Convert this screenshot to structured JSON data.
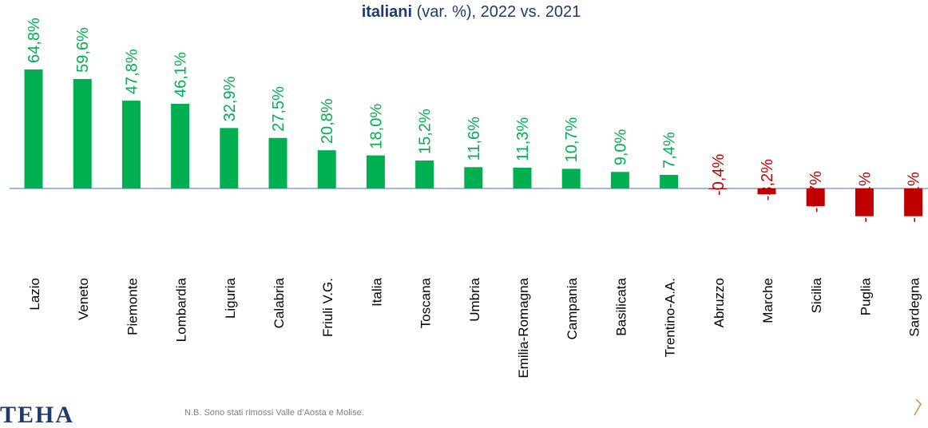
{
  "title": {
    "bold": "italiani",
    "rest": " (var. %), 2022 vs. 2021"
  },
  "footer": {
    "logo": "TEHA",
    "note": "N.B. Sono stati rimossi Valle d’Aosta e Molise."
  },
  "colors": {
    "positive": "#00B050",
    "negative": "#C00000",
    "axis": "#4472C4",
    "title": "#1F3A6E"
  },
  "chart_data": {
    "type": "bar",
    "categories": [
      "Lazio",
      "Veneto",
      "Piemonte",
      "Lombardia",
      "Liguria",
      "Calabria",
      "Friuli V.G.",
      "Italia",
      "Toscana",
      "Umbria",
      "Emilia-Romagna",
      "Campania",
      "Basilicata",
      "Trentino-A.A.",
      "Abruzzo",
      "Marche",
      "Sicilia",
      "Puglia",
      "Sardegna"
    ],
    "values": [
      64.8,
      59.6,
      47.8,
      46.1,
      32.9,
      27.5,
      20.8,
      18.0,
      15.2,
      11.6,
      11.3,
      10.7,
      9.0,
      7.4,
      -0.4,
      -3.2,
      -9.7,
      -15.1,
      -15.1
    ],
    "data_labels": [
      "64,8%",
      "59,6%",
      "47,8%",
      "46,1%",
      "32,9%",
      "27,5%",
      "20,8%",
      "18,0%",
      "15,2%",
      "11,6%",
      "11,3%",
      "10,7%",
      "9,0%",
      "7,4%",
      "-0,4%",
      "-3,2%",
      "-9,7%",
      "-15,1%",
      "-15,1%"
    ],
    "value_format": "percent, comma decimal",
    "legend": "none",
    "grid": false
  }
}
